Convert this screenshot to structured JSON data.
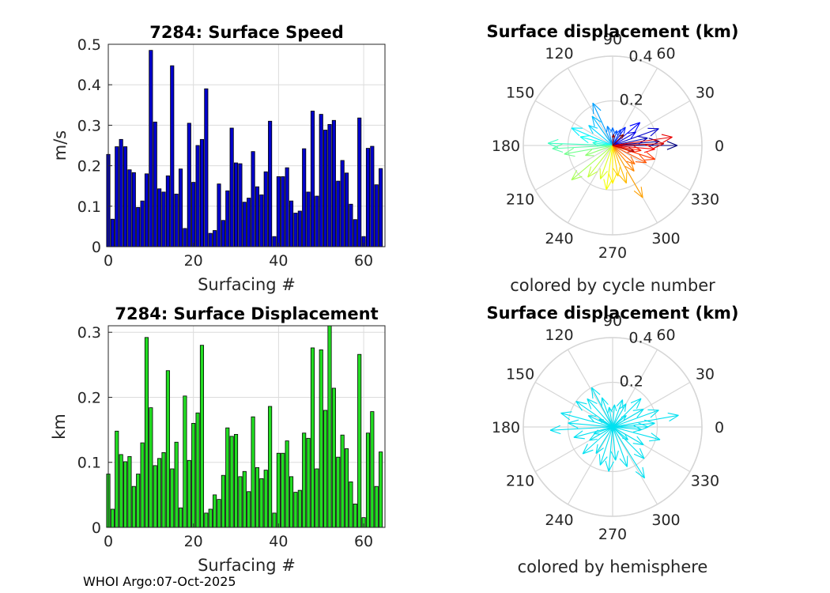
{
  "charts": [
    {
      "type": "bar",
      "title": "7284: Surface Speed",
      "xlabel": "Surfacing #",
      "ylabel": "m/s",
      "color": "#0000cc",
      "xlim": [
        0,
        65
      ],
      "ylim": [
        0,
        0.5
      ],
      "xticks": [
        0,
        20,
        40,
        60
      ],
      "yticks": [
        0,
        0.1,
        0.2,
        0.3,
        0.4,
        0.5
      ],
      "grid": true,
      "values": [
        0.228,
        0.068,
        0.247,
        0.265,
        0.247,
        0.19,
        0.183,
        0.097,
        0.113,
        0.18,
        0.485,
        0.308,
        0.143,
        0.135,
        0.175,
        0.447,
        0.13,
        0.192,
        0.045,
        0.305,
        0.159,
        0.25,
        0.265,
        0.39,
        0.033,
        0.04,
        0.155,
        0.065,
        0.138,
        0.293,
        0.207,
        0.205,
        0.11,
        0.12,
        0.235,
        0.148,
        0.128,
        0.185,
        0.31,
        0.025,
        0.173,
        0.173,
        0.195,
        0.113,
        0.083,
        0.088,
        0.242,
        0.135,
        0.335,
        0.125,
        0.327,
        0.288,
        0.302,
        0.312,
        0.162,
        0.213,
        0.182,
        0.105,
        0.067,
        0.318,
        0.025,
        0.243,
        0.248,
        0.153,
        0.193
      ]
    },
    {
      "type": "polar",
      "title": "Surface displacement (km)",
      "caption": "colored by cycle number",
      "rmax": 0.4,
      "rticks": [
        0.2,
        0.4
      ],
      "angle_ticks": [
        0,
        30,
        60,
        90,
        120,
        150,
        180,
        210,
        240,
        270,
        300,
        330
      ],
      "color_mode": "cycle",
      "vectors": [
        {
          "angle": 0,
          "r": 0.29
        },
        {
          "angle": 5,
          "r": 0.21
        },
        {
          "angle": 12,
          "r": 0.16
        },
        {
          "angle": 20,
          "r": 0.22
        },
        {
          "angle": 30,
          "r": 0.12
        },
        {
          "angle": 40,
          "r": 0.16
        },
        {
          "angle": 55,
          "r": 0.1
        },
        {
          "angle": 63,
          "r": 0.08
        },
        {
          "angle": 75,
          "r": 0.07
        },
        {
          "angle": 90,
          "r": 0.08
        },
        {
          "angle": 105,
          "r": 0.09
        },
        {
          "angle": 115,
          "r": 0.21
        },
        {
          "angle": 125,
          "r": 0.16
        },
        {
          "angle": 140,
          "r": 0.14
        },
        {
          "angle": 157,
          "r": 0.2
        },
        {
          "angle": 165,
          "r": 0.15
        },
        {
          "angle": 172,
          "r": 0.09
        },
        {
          "angle": 178,
          "r": 0.29
        },
        {
          "angle": 183,
          "r": 0.27
        },
        {
          "angle": 190,
          "r": 0.22
        },
        {
          "angle": 200,
          "r": 0.13
        },
        {
          "angle": 220,
          "r": 0.24
        },
        {
          "angle": 232,
          "r": 0.18
        },
        {
          "angle": 250,
          "r": 0.16
        },
        {
          "angle": 262,
          "r": 0.2
        },
        {
          "angle": 270,
          "r": 0.17
        },
        {
          "angle": 280,
          "r": 0.14
        },
        {
          "angle": 290,
          "r": 0.18
        },
        {
          "angle": 300,
          "r": 0.27
        },
        {
          "angle": 310,
          "r": 0.15
        },
        {
          "angle": 320,
          "r": 0.13
        },
        {
          "angle": 333,
          "r": 0.17
        },
        {
          "angle": 342,
          "r": 0.2
        },
        {
          "angle": 350,
          "r": 0.13
        },
        {
          "angle": 355,
          "r": 0.19
        },
        {
          "angle": 8,
          "r": 0.27
        },
        {
          "angle": 2,
          "r": 0.23
        },
        {
          "angle": 345,
          "r": 0.1
        },
        {
          "angle": 85,
          "r": 0.05
        },
        {
          "angle": 45,
          "r": 0.07
        }
      ]
    },
    {
      "type": "bar",
      "title": "7284: Surface Displacement",
      "xlabel": "Surfacing #",
      "ylabel": "km",
      "color": "#22dd22",
      "xlim": [
        0,
        65
      ],
      "ylim": [
        0,
        0.31
      ],
      "xticks": [
        0,
        20,
        40,
        60
      ],
      "yticks": [
        0,
        0.1,
        0.2,
        0.3
      ],
      "grid": true,
      "values": [
        0.082,
        0.028,
        0.148,
        0.112,
        0.101,
        0.109,
        0.063,
        0.082,
        0.13,
        0.292,
        0.184,
        0.095,
        0.106,
        0.115,
        0.241,
        0.09,
        0.131,
        0.03,
        0.202,
        0.103,
        0.16,
        0.176,
        0.28,
        0.022,
        0.028,
        0.05,
        0.043,
        0.08,
        0.153,
        0.14,
        0.143,
        0.078,
        0.086,
        0.055,
        0.17,
        0.092,
        0.075,
        0.088,
        0.186,
        0.022,
        0.114,
        0.114,
        0.133,
        0.078,
        0.054,
        0.057,
        0.145,
        0.137,
        0.276,
        0.09,
        0.273,
        0.18,
        0.31,
        0.214,
        0.108,
        0.142,
        0.121,
        0.07,
        0.036,
        0.266,
        0.015,
        0.145,
        0.178,
        0.063,
        0.116
      ]
    },
    {
      "type": "polar",
      "title": "Surface displacement (km)",
      "caption": "colored by hemisphere",
      "rmax": 0.4,
      "rticks": [
        0.2,
        0.4
      ],
      "angle_ticks": [
        0,
        30,
        60,
        90,
        120,
        150,
        180,
        210,
        240,
        270,
        300,
        330
      ],
      "color_mode": "single",
      "color": "#00e0f0",
      "vectors": [
        {
          "angle": 0,
          "r": 0.16
        },
        {
          "angle": 10,
          "r": 0.3
        },
        {
          "angle": 20,
          "r": 0.22
        },
        {
          "angle": 30,
          "r": 0.16
        },
        {
          "angle": 45,
          "r": 0.18
        },
        {
          "angle": 60,
          "r": 0.12
        },
        {
          "angle": 70,
          "r": 0.13
        },
        {
          "angle": 85,
          "r": 0.1
        },
        {
          "angle": 100,
          "r": 0.09
        },
        {
          "angle": 110,
          "r": 0.14
        },
        {
          "angle": 118,
          "r": 0.2
        },
        {
          "angle": 132,
          "r": 0.17
        },
        {
          "angle": 145,
          "r": 0.2
        },
        {
          "angle": 155,
          "r": 0.12
        },
        {
          "angle": 165,
          "r": 0.24
        },
        {
          "angle": 175,
          "r": 0.2
        },
        {
          "angle": 183,
          "r": 0.28
        },
        {
          "angle": 195,
          "r": 0.18
        },
        {
          "angle": 210,
          "r": 0.12
        },
        {
          "angle": 222,
          "r": 0.18
        },
        {
          "angle": 238,
          "r": 0.14
        },
        {
          "angle": 252,
          "r": 0.18
        },
        {
          "angle": 265,
          "r": 0.2
        },
        {
          "angle": 275,
          "r": 0.15
        },
        {
          "angle": 290,
          "r": 0.19
        },
        {
          "angle": 302,
          "r": 0.27
        },
        {
          "angle": 315,
          "r": 0.2
        },
        {
          "angle": 330,
          "r": 0.16
        },
        {
          "angle": 345,
          "r": 0.22
        },
        {
          "angle": 355,
          "r": 0.13
        },
        {
          "angle": 5,
          "r": 0.19
        },
        {
          "angle": 40,
          "r": 0.08
        },
        {
          "angle": 150,
          "r": 0.07
        },
        {
          "angle": 200,
          "r": 0.09
        },
        {
          "angle": 320,
          "r": 0.09
        }
      ]
    }
  ],
  "footer": "WHOI Argo:07-Oct-2025"
}
